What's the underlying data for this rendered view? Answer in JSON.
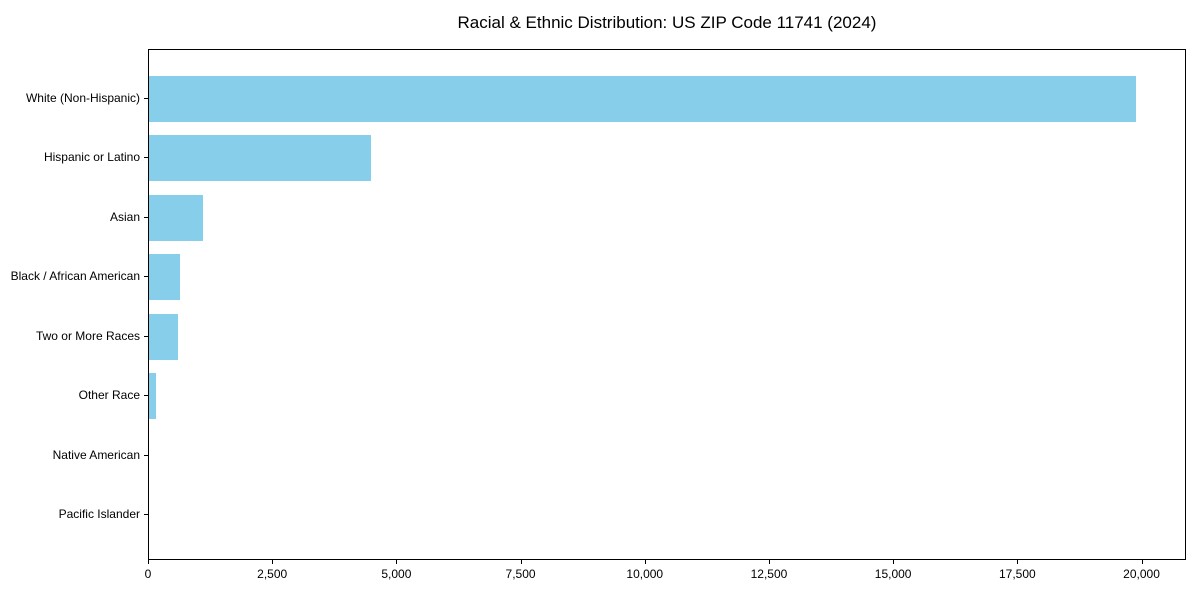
{
  "title": "Racial & Ethnic Distribution: US ZIP Code 11741 (2024)",
  "chart_data": {
    "type": "bar",
    "orientation": "horizontal",
    "title": "Racial & Ethnic Distribution: US ZIP Code 11741 (2024)",
    "xlabel": "",
    "ylabel": "",
    "categories": [
      "White (Non-Hispanic)",
      "Hispanic or Latino",
      "Asian",
      "Black / African American",
      "Two or More Races",
      "Other Race",
      "Native American",
      "Pacific Islander"
    ],
    "values": [
      19900,
      4470,
      1080,
      630,
      590,
      140,
      0,
      0
    ],
    "xlim": [
      0,
      20895
    ],
    "xticks": [
      0,
      2500,
      5000,
      7500,
      10000,
      12500,
      15000,
      17500,
      20000
    ],
    "xtick_labels": [
      "0",
      "2,500",
      "5,000",
      "7,500",
      "10,000",
      "12,500",
      "15,000",
      "17,500",
      "20,000"
    ],
    "bar_color": "#87CEEB",
    "background_color": "#ffffff",
    "spine_color": "#000000",
    "grid": false,
    "legend": null
  }
}
